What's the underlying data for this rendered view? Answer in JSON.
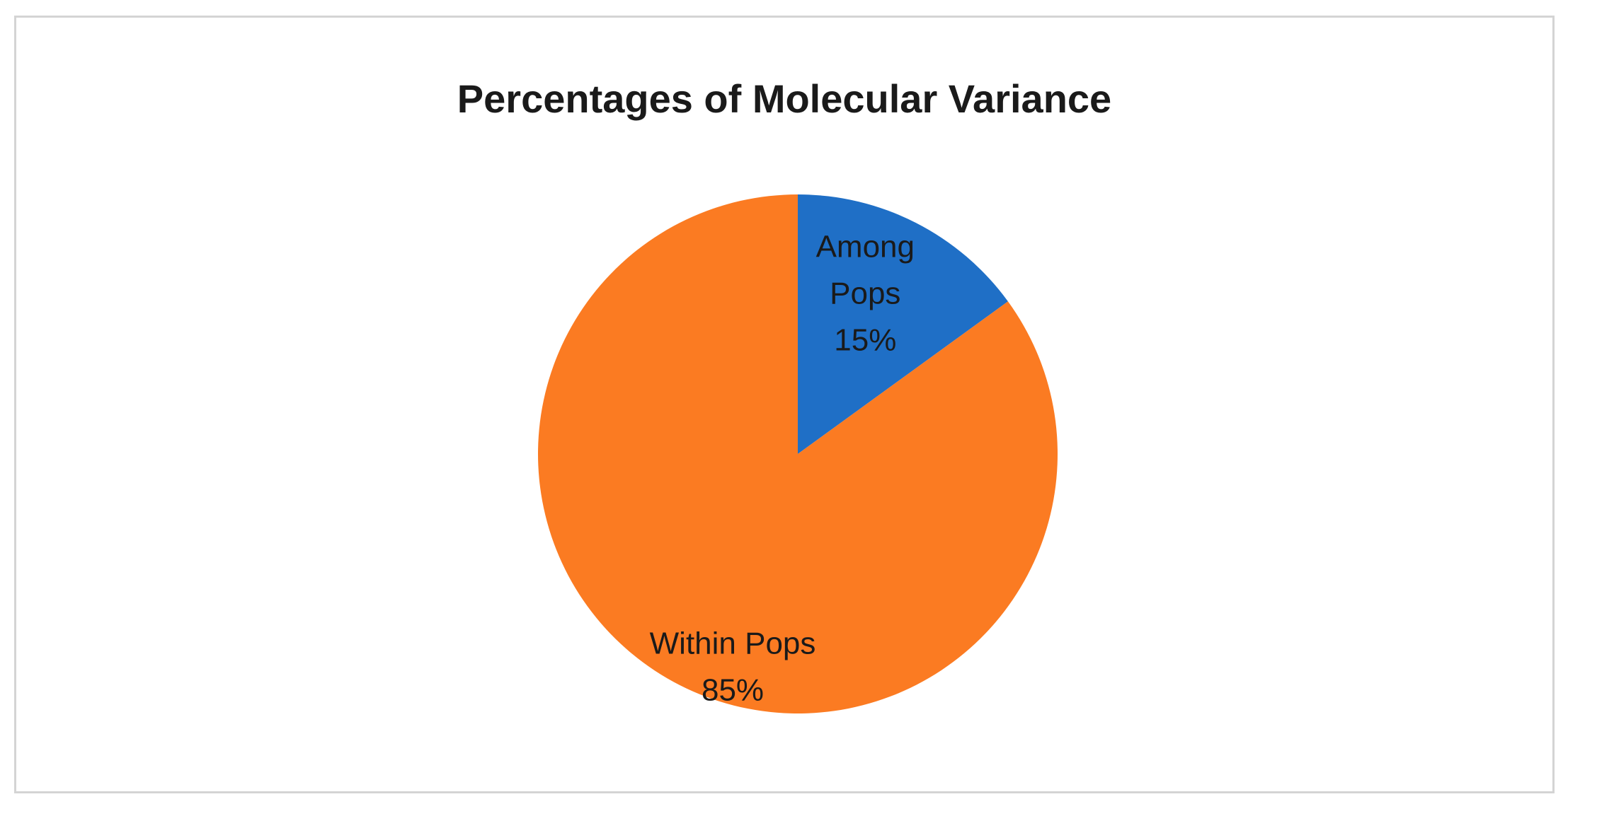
{
  "chart_data": {
    "type": "pie",
    "title": "Percentages of Molecular Variance",
    "slices": [
      {
        "label_lines": [
          "Among",
          "Pops",
          "15%"
        ],
        "name": "Among Pops",
        "value": 15,
        "color": "#1f6fc6"
      },
      {
        "label_lines": [
          "Within Pops",
          "85%"
        ],
        "name": "Within Pops",
        "value": 85,
        "color": "#fb7b22"
      }
    ],
    "start_angle_deg": 0,
    "direction": "clockwise",
    "legend": "none"
  }
}
